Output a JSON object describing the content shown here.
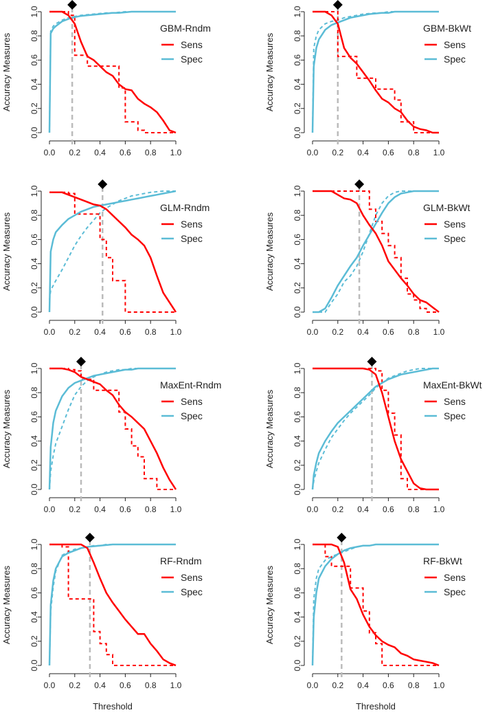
{
  "chart_data": {
    "type": "line",
    "xlabel": "Threshold",
    "ylabel": "Accuracy Measures",
    "xlim": [
      0,
      1
    ],
    "ylim": [
      0,
      1
    ],
    "xticks": [
      "0.0",
      "0.2",
      "0.4",
      "0.6",
      "0.8",
      "1.0"
    ],
    "yticks": [
      "0.0",
      "0.2",
      "0.4",
      "0.6",
      "0.8",
      "1.0"
    ],
    "grid": false,
    "legend_placement": "top-right",
    "legend": {
      "sens": "Sens",
      "spec": "Spec"
    },
    "colors": {
      "sens": "#ff0000",
      "spec": "#5bbcd6",
      "threshold": "#bbbbbb",
      "marker": "#000000"
    },
    "x": [
      0,
      0.01,
      0.03,
      0.05,
      0.1,
      0.15,
      0.2,
      0.25,
      0.3,
      0.35,
      0.4,
      0.45,
      0.5,
      0.55,
      0.6,
      0.65,
      0.7,
      0.75,
      0.8,
      0.85,
      0.9,
      0.95,
      1.0
    ],
    "panels": [
      {
        "title": "GBM-Rndm",
        "threshold": 0.18,
        "sens": [
          1,
          1,
          1,
          1,
          1,
          0.97,
          0.9,
          0.75,
          0.63,
          0.6,
          0.55,
          0.5,
          0.47,
          0.4,
          0.36,
          0.35,
          0.28,
          0.24,
          0.21,
          0.17,
          0.1,
          0.02,
          0
        ],
        "sens_dashed": [
          1,
          1,
          1,
          1,
          1,
          0.97,
          0.64,
          0.64,
          0.55,
          0.55,
          0.55,
          0.55,
          0.55,
          0.37,
          0.09,
          0.09,
          0.02,
          0,
          0,
          0,
          0,
          0,
          0
        ],
        "spec": [
          0,
          0.82,
          0.86,
          0.88,
          0.92,
          0.94,
          0.955,
          0.965,
          0.97,
          0.975,
          0.98,
          0.985,
          0.99,
          0.99,
          0.995,
          1,
          1,
          1,
          1,
          1,
          1,
          1,
          1
        ],
        "spec_dashed": [
          0,
          0.84,
          0.88,
          0.9,
          0.93,
          0.95,
          0.96,
          0.97,
          0.975,
          0.98,
          0.985,
          0.99,
          0.99,
          0.995,
          1,
          1,
          1,
          1,
          1,
          1,
          1,
          1,
          1
        ]
      },
      {
        "title": "GBM-BkWt",
        "threshold": 0.2,
        "sens": [
          1,
          1,
          1,
          1,
          1,
          0.97,
          0.9,
          0.7,
          0.62,
          0.57,
          0.5,
          0.43,
          0.35,
          0.28,
          0.25,
          0.2,
          0.17,
          0.1,
          0.05,
          0.03,
          0.02,
          0,
          0
        ],
        "sens_dashed": [
          1,
          1,
          1,
          1,
          1,
          1,
          0.63,
          0.63,
          0.63,
          0.45,
          0.45,
          0.45,
          0.36,
          0.36,
          0.36,
          0.27,
          0.09,
          0.09,
          0,
          0,
          0,
          0,
          0
        ],
        "spec": [
          0,
          0.55,
          0.7,
          0.77,
          0.85,
          0.89,
          0.91,
          0.93,
          0.95,
          0.96,
          0.97,
          0.98,
          0.985,
          0.99,
          0.99,
          1,
          1,
          1,
          1,
          1,
          1,
          1,
          1
        ],
        "spec_dashed": [
          0,
          0.7,
          0.8,
          0.85,
          0.9,
          0.92,
          0.93,
          0.95,
          0.96,
          0.97,
          0.98,
          0.985,
          0.99,
          0.99,
          1,
          1,
          1,
          1,
          1,
          1,
          1,
          1,
          1
        ]
      },
      {
        "title": "GLM-Rndm",
        "threshold": 0.42,
        "sens": [
          0.99,
          0.99,
          0.99,
          0.99,
          0.99,
          0.97,
          0.95,
          0.93,
          0.91,
          0.89,
          0.88,
          0.85,
          0.8,
          0.75,
          0.7,
          0.64,
          0.6,
          0.55,
          0.45,
          0.3,
          0.16,
          0.08,
          0
        ],
        "sens_dashed": [
          0.99,
          0.99,
          0.99,
          0.99,
          0.99,
          0.98,
          0.81,
          0.81,
          0.81,
          0.81,
          0.6,
          0.45,
          0.26,
          0.26,
          0,
          0,
          0,
          0,
          0,
          0,
          0,
          0,
          0
        ],
        "spec": [
          0,
          0.5,
          0.6,
          0.66,
          0.72,
          0.77,
          0.8,
          0.83,
          0.85,
          0.87,
          0.88,
          0.89,
          0.9,
          0.91,
          0.92,
          0.93,
          0.94,
          0.95,
          0.96,
          0.97,
          0.98,
          0.99,
          1
        ],
        "spec_dashed": [
          0.1,
          0.18,
          0.22,
          0.26,
          0.35,
          0.45,
          0.55,
          0.63,
          0.7,
          0.76,
          0.82,
          0.86,
          0.89,
          0.92,
          0.94,
          0.96,
          0.97,
          0.98,
          0.99,
          0.995,
          1,
          1,
          1
        ]
      },
      {
        "title": "GLM-BkWt",
        "threshold": 0.37,
        "sens": [
          1,
          1,
          1,
          1,
          1,
          1,
          0.97,
          0.94,
          0.93,
          0.9,
          0.8,
          0.72,
          0.65,
          0.55,
          0.42,
          0.35,
          0.28,
          0.22,
          0.15,
          0.1,
          0.08,
          0.04,
          0
        ],
        "sens_dashed": [
          1,
          1,
          1,
          1,
          1,
          1,
          1,
          1,
          1,
          1,
          1,
          0.85,
          0.75,
          0.65,
          0.55,
          0.45,
          0.28,
          0.15,
          0.1,
          0.03,
          0,
          0,
          0
        ],
        "spec": [
          0,
          0,
          0,
          0,
          0.03,
          0.12,
          0.22,
          0.3,
          0.38,
          0.45,
          0.55,
          0.64,
          0.73,
          0.82,
          0.9,
          0.95,
          0.98,
          0.99,
          1,
          1,
          1,
          1,
          1
        ],
        "spec_dashed": [
          0,
          0,
          0,
          0,
          0,
          0.08,
          0.15,
          0.25,
          0.3,
          0.38,
          0.5,
          0.65,
          0.8,
          0.9,
          0.96,
          0.99,
          1,
          1,
          1,
          1,
          1,
          1,
          1
        ]
      },
      {
        "title": "MaxEnt-Rndm",
        "threshold": 0.25,
        "sens": [
          1,
          1,
          1,
          1,
          1,
          0.99,
          0.97,
          0.93,
          0.91,
          0.89,
          0.87,
          0.82,
          0.78,
          0.7,
          0.64,
          0.6,
          0.55,
          0.5,
          0.4,
          0.3,
          0.18,
          0.08,
          0
        ],
        "sens_dashed": [
          1,
          1,
          1,
          1,
          1,
          0.99,
          0.98,
          0.91,
          0.91,
          0.82,
          0.82,
          0.82,
          0.82,
          0.64,
          0.5,
          0.36,
          0.27,
          0.09,
          0.09,
          0,
          0,
          0,
          0
        ],
        "spec": [
          0,
          0.35,
          0.55,
          0.65,
          0.77,
          0.84,
          0.88,
          0.9,
          0.92,
          0.94,
          0.95,
          0.96,
          0.97,
          0.98,
          0.99,
          0.99,
          1,
          1,
          1,
          1,
          1,
          1,
          1
        ],
        "spec_dashed": [
          0,
          0.15,
          0.28,
          0.38,
          0.52,
          0.66,
          0.78,
          0.85,
          0.9,
          0.93,
          0.95,
          0.97,
          0.98,
          0.99,
          0.99,
          1,
          1,
          1,
          1,
          1,
          1,
          1,
          1
        ]
      },
      {
        "title": "MaxEnt-BkWt",
        "threshold": 0.47,
        "sens": [
          1,
          1,
          1,
          1,
          1,
          1,
          1,
          1,
          1,
          1,
          1,
          0.99,
          0.95,
          0.8,
          0.6,
          0.4,
          0.25,
          0.15,
          0.05,
          0.01,
          0,
          0,
          0
        ],
        "sens_dashed": [
          1,
          1,
          1,
          1,
          1,
          1,
          1,
          1,
          1,
          1,
          1,
          1,
          0.98,
          0.82,
          0.63,
          0.45,
          0.09,
          0,
          0,
          0,
          0,
          0,
          0
        ],
        "spec": [
          0,
          0.12,
          0.22,
          0.3,
          0.4,
          0.48,
          0.55,
          0.6,
          0.65,
          0.7,
          0.75,
          0.8,
          0.85,
          0.88,
          0.91,
          0.93,
          0.95,
          0.96,
          0.97,
          0.98,
          0.99,
          1,
          1
        ],
        "spec_dashed": [
          0,
          0.07,
          0.15,
          0.22,
          0.33,
          0.43,
          0.5,
          0.57,
          0.63,
          0.68,
          0.73,
          0.78,
          0.84,
          0.88,
          0.92,
          0.94,
          0.96,
          0.98,
          0.99,
          1,
          1,
          1,
          1
        ]
      },
      {
        "title": "RF-Rndm",
        "threshold": 0.32,
        "sens": [
          1,
          1,
          1,
          1,
          1,
          1,
          1,
          1,
          0.97,
          0.85,
          0.72,
          0.6,
          0.52,
          0.45,
          0.38,
          0.32,
          0.26,
          0.26,
          0.18,
          0.12,
          0.05,
          0.02,
          0
        ],
        "sens_dashed": [
          1,
          1,
          1,
          1,
          0.98,
          0.55,
          0.55,
          0.55,
          0.55,
          0.28,
          0.18,
          0.09,
          0,
          0,
          0,
          0,
          0,
          0,
          0,
          0,
          0,
          0,
          0
        ],
        "spec": [
          0,
          0.5,
          0.7,
          0.8,
          0.9,
          0.93,
          0.95,
          0.97,
          0.98,
          0.985,
          0.99,
          0.995,
          1,
          1,
          1,
          1,
          1,
          1,
          1,
          1,
          1,
          1,
          1
        ],
        "spec_dashed": [
          0,
          0.45,
          0.65,
          0.78,
          0.91,
          0.94,
          0.96,
          0.97,
          0.98,
          0.99,
          0.99,
          1,
          1,
          1,
          1,
          1,
          1,
          1,
          1,
          1,
          1,
          1,
          1
        ]
      },
      {
        "title": "RF-BkWt",
        "threshold": 0.23,
        "sens": [
          1,
          1,
          1,
          1,
          1,
          1,
          0.98,
          0.85,
          0.63,
          0.55,
          0.42,
          0.32,
          0.25,
          0.2,
          0.17,
          0.15,
          0.1,
          0.08,
          0.05,
          0.04,
          0.03,
          0.02,
          0
        ],
        "sens_dashed": [
          1,
          1,
          1,
          1,
          0.9,
          0.82,
          0.82,
          0.82,
          0.64,
          0.64,
          0.45,
          0.27,
          0.18,
          0,
          0,
          0,
          0,
          0,
          0,
          0,
          0,
          0,
          0
        ],
        "spec": [
          0,
          0.4,
          0.6,
          0.72,
          0.82,
          0.88,
          0.92,
          0.95,
          0.97,
          0.98,
          0.99,
          0.99,
          1,
          1,
          1,
          1,
          1,
          1,
          1,
          1,
          1,
          1,
          1
        ],
        "spec_dashed": [
          0,
          0.55,
          0.72,
          0.8,
          0.87,
          0.9,
          0.92,
          0.94,
          0.96,
          0.98,
          0.99,
          0.99,
          1,
          1,
          1,
          1,
          1,
          1,
          1,
          1,
          1,
          1,
          1
        ]
      }
    ]
  }
}
